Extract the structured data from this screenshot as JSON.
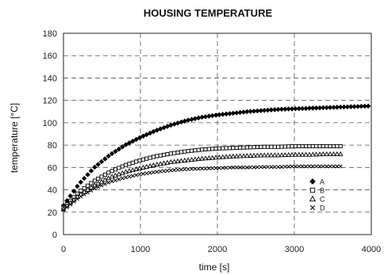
{
  "chart_data": {
    "type": "scatter",
    "title": "HOUSING TEMPERATURE",
    "xlabel": "time [s]",
    "ylabel": "temperature [°C]",
    "xlim": [
      0,
      4000
    ],
    "ylim": [
      0,
      180
    ],
    "xticks": [
      0,
      1000,
      2000,
      3000,
      4000
    ],
    "yticks": [
      0,
      20,
      40,
      60,
      80,
      100,
      120,
      140,
      160,
      180
    ],
    "grid": true,
    "legend_position": "right",
    "series": [
      {
        "name": "A",
        "marker": "filled-diamond",
        "x": [
          0,
          200,
          400,
          600,
          800,
          1000,
          1200,
          1400,
          1600,
          1800,
          2000,
          2200,
          2400,
          2600,
          2800,
          3000,
          3200,
          3400,
          3600,
          3800,
          4000
        ],
        "y": [
          26,
          45,
          60,
          71,
          80,
          87,
          93,
          98,
          102,
          105,
          107,
          108.5,
          110,
          111,
          112,
          112.5,
          113,
          113.5,
          114,
          114.5,
          115
        ]
      },
      {
        "name": "B",
        "marker": "open-square",
        "x": [
          0,
          200,
          400,
          600,
          800,
          1000,
          1200,
          1400,
          1600,
          1800,
          2000,
          2200,
          2400,
          2600,
          2800,
          3000,
          3200,
          3400,
          3600
        ],
        "y": [
          24,
          38,
          48,
          56,
          62,
          66.5,
          70,
          72.5,
          74.5,
          76,
          77,
          77.5,
          78,
          78.5,
          78.5,
          79,
          79,
          79,
          79
        ]
      },
      {
        "name": "C",
        "marker": "open-triangle",
        "x": [
          0,
          200,
          400,
          600,
          800,
          1000,
          1200,
          1400,
          1600,
          1800,
          2000,
          2200,
          2400,
          2600,
          2800,
          3000,
          3200,
          3400,
          3600
        ],
        "y": [
          23,
          35,
          44,
          51,
          56,
          59.5,
          62.5,
          65,
          66.5,
          68,
          69,
          70,
          70.5,
          71,
          71,
          71.5,
          71.5,
          72,
          72
        ]
      },
      {
        "name": "D",
        "marker": "x",
        "x": [
          0,
          200,
          400,
          600,
          800,
          1000,
          1200,
          1400,
          1600,
          1800,
          2000,
          2200,
          2400,
          2600,
          2800,
          3000,
          3200,
          3400,
          3600
        ],
        "y": [
          22,
          33,
          41,
          47,
          51,
          54,
          56,
          57.5,
          58.5,
          59,
          59.5,
          60,
          60,
          60.5,
          60.5,
          61,
          61,
          61,
          61
        ]
      }
    ]
  }
}
